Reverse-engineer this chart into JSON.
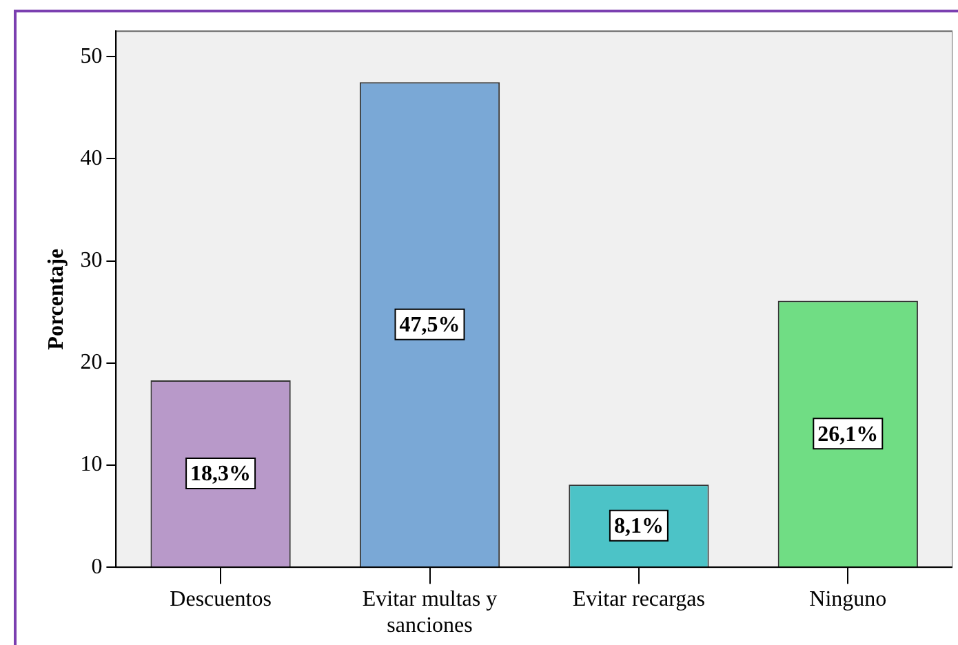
{
  "chart_data": {
    "type": "bar",
    "ylabel": "Porcentaje",
    "categories": [
      "Descuentos",
      "Evitar multas y sanciones",
      "Evitar recargas",
      "Ninguno"
    ],
    "values": [
      18.3,
      47.5,
      8.1,
      26.1
    ],
    "colors": [
      "#b899c9",
      "#7aa8d6",
      "#4cc3c7",
      "#70dd84"
    ],
    "value_labels": [
      "18,3%",
      "47,5%",
      "8,1%",
      "26,1%"
    ],
    "ylim": [
      0,
      52.5
    ],
    "yticks": [
      0,
      10,
      20,
      30,
      40,
      50
    ]
  }
}
